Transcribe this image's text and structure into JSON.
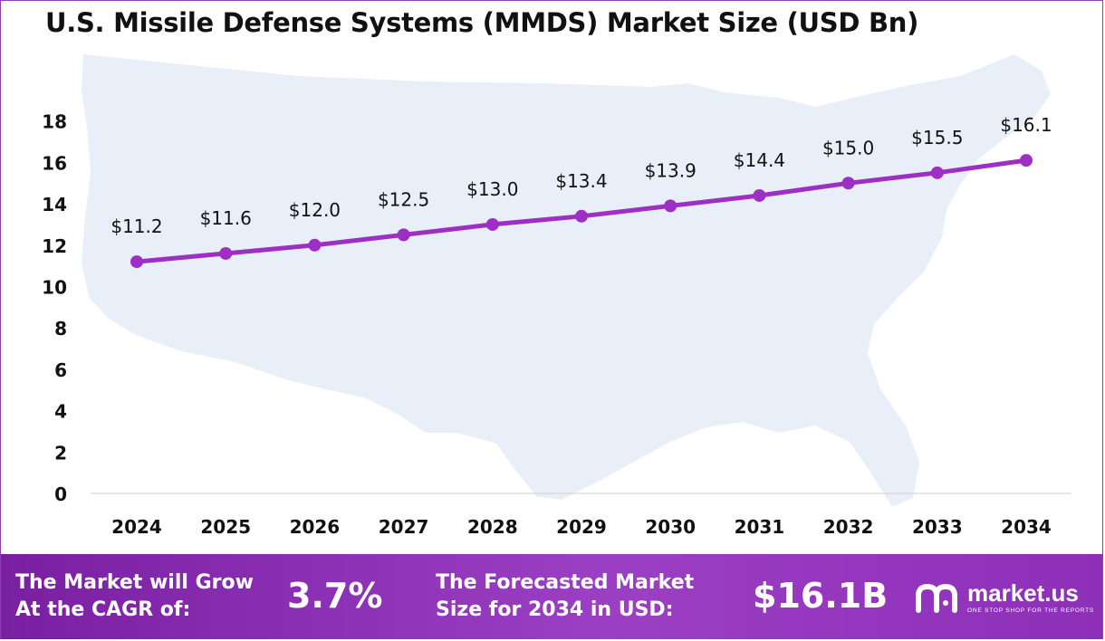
{
  "title": "U.S. Missile Defense Systems (MMDS) Market Size (USD Bn)",
  "chart_data": {
    "type": "line",
    "categories": [
      "2024",
      "2025",
      "2026",
      "2027",
      "2028",
      "2029",
      "2030",
      "2031",
      "2032",
      "2033",
      "2034"
    ],
    "values": [
      11.2,
      11.6,
      12.0,
      12.5,
      13.0,
      13.4,
      13.9,
      14.4,
      15.0,
      15.5,
      16.1
    ],
    "data_labels": [
      "$11.2",
      "$11.6",
      "$12.0",
      "$12.5",
      "$13.0",
      "$13.4",
      "$13.9",
      "$14.4",
      "$15.0",
      "$15.5",
      "$16.1"
    ],
    "yticks": [
      0,
      2,
      4,
      6,
      8,
      10,
      12,
      14,
      16,
      18
    ],
    "ylim": [
      0,
      19
    ],
    "grid": false,
    "line_color": "#9d2fc4"
  },
  "footer": {
    "cagr_label_line1": "The Market will Grow",
    "cagr_label_line2": "At the CAGR of:",
    "cagr_value": "3.7%",
    "forecast_label_line1": "The Forecasted Market",
    "forecast_label_line2": "Size for 2034 in USD:",
    "forecast_value": "$16.1B"
  },
  "logo": {
    "name": "market.us",
    "tagline": "ONE STOP SHOP FOR THE REPORTS"
  }
}
